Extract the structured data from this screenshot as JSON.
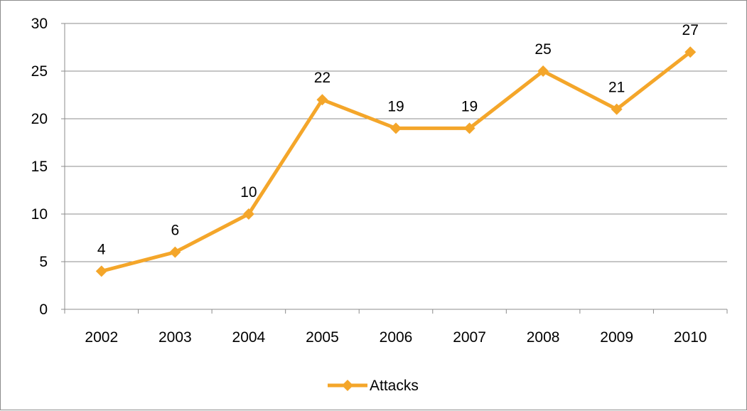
{
  "chart_data": {
    "type": "line",
    "title": "",
    "xlabel": "",
    "ylabel": "",
    "categories": [
      "2002",
      "2003",
      "2004",
      "2005",
      "2006",
      "2007",
      "2008",
      "2009",
      "2010"
    ],
    "series": [
      {
        "name": "Attacks",
        "values": [
          4,
          6,
          10,
          22,
          19,
          19,
          25,
          21,
          27
        ],
        "color": "#F4A62A",
        "marker": "diamond"
      }
    ],
    "ylim": [
      0,
      30
    ],
    "yticks": [
      0,
      5,
      10,
      15,
      20,
      25,
      30
    ],
    "grid": "horizontal",
    "data_labels": true,
    "legend_position": "bottom"
  }
}
